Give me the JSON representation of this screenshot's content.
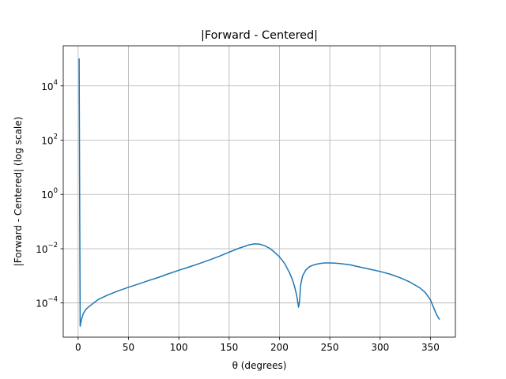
{
  "chart_data": {
    "type": "line",
    "title": "|Forward - Centered|",
    "xlabel": "θ (degrees)",
    "ylabel": "|Forward - Centered| (log scale)",
    "xlim": [
      -14.8,
      374.8
    ],
    "ylim": [
      5.5e-06,
      300000.0
    ],
    "yscale": "log",
    "grid": true,
    "x_ticks": [
      {
        "value": 0,
        "label": "0"
      },
      {
        "value": 50,
        "label": "50"
      },
      {
        "value": 100,
        "label": "100"
      },
      {
        "value": 150,
        "label": "150"
      },
      {
        "value": 200,
        "label": "200"
      },
      {
        "value": 250,
        "label": "250"
      },
      {
        "value": 300,
        "label": "300"
      },
      {
        "value": 350,
        "label": "350"
      }
    ],
    "y_ticks": [
      {
        "value": 0.0001,
        "base": "10",
        "exp": "−4"
      },
      {
        "value": 0.01,
        "base": "10",
        "exp": "−2"
      },
      {
        "value": 1,
        "base": "10",
        "exp": "0"
      },
      {
        "value": 100,
        "base": "10",
        "exp": "2"
      },
      {
        "value": 10000.0,
        "base": "10",
        "exp": "4"
      }
    ],
    "series": [
      {
        "color": "#1f77b4",
        "x": [
          1,
          1.5,
          2,
          3,
          5,
          8,
          12,
          20,
          30,
          40,
          50,
          60,
          70,
          80,
          90,
          100,
          110,
          120,
          130,
          140,
          150,
          155,
          160,
          165,
          170,
          175,
          180,
          185,
          190,
          195,
          200,
          205,
          210,
          213,
          215,
          217,
          218,
          219,
          220,
          221,
          223,
          226,
          230,
          235,
          240,
          245,
          250,
          255,
          260,
          270,
          280,
          290,
          300,
          310,
          320,
          330,
          340,
          345,
          350,
          353,
          356,
          358,
          359
        ],
        "y": [
          100000.0,
          1.0,
          1.4e-05,
          2.2e-05,
          4e-05,
          6e-05,
          8e-05,
          0.000135,
          0.0002,
          0.00028,
          0.00038,
          0.0005,
          0.00067,
          0.00088,
          0.0012,
          0.0016,
          0.0021,
          0.0028,
          0.0038,
          0.0052,
          0.0075,
          0.0088,
          0.0105,
          0.012,
          0.014,
          0.015,
          0.0148,
          0.013,
          0.0105,
          0.0075,
          0.005,
          0.0029,
          0.0013,
          0.0007,
          0.0004,
          0.0002,
          0.00012,
          7e-05,
          0.00012,
          0.00045,
          0.001,
          0.0016,
          0.0022,
          0.0026,
          0.00285,
          0.00298,
          0.003,
          0.00295,
          0.00285,
          0.00255,
          0.0021,
          0.00175,
          0.00145,
          0.00115,
          0.00085,
          0.00058,
          0.00035,
          0.00024,
          0.00013,
          7e-05,
          3.8e-05,
          2.8e-05,
          2.5e-05
        ]
      }
    ]
  }
}
